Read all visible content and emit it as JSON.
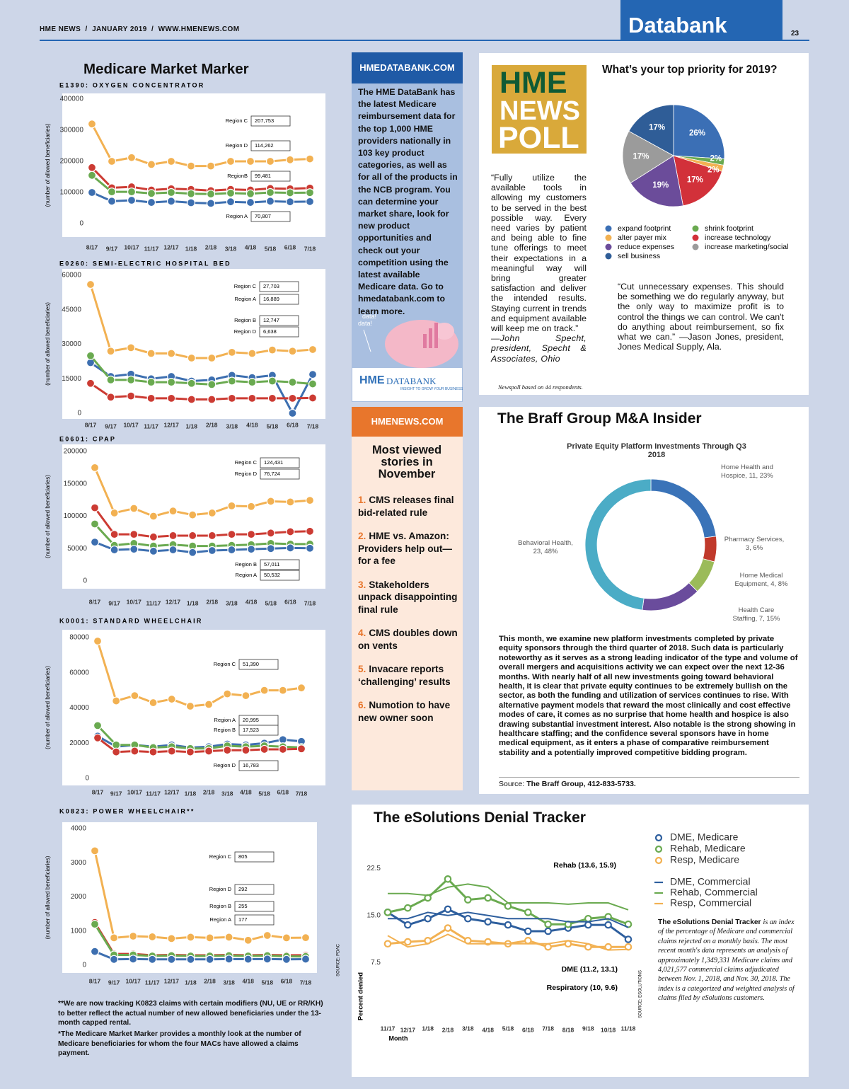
{
  "header": {
    "masthead": "HME NEWS  /  JANUARY 2019  /  WWW.HMENEWS.COM",
    "section": "Databank",
    "page": "23"
  },
  "market_marker": {
    "title": "Medicare Market Marker",
    "source": "SOURCE: PDAC",
    "footnotes": [
      "**We are now tracking K0823 claims with certain modifiers (NU, UE or RR/KH) to better reflect the actual number of new allowed beneficiaries under the 13-month capped rental.",
      "*The Medicare Market Marker provides a monthly look at the number of Medicare beneficiaries for whom the four MACs have allowed a claims payment."
    ]
  },
  "chart_data": [
    {
      "type": "line",
      "title": "E1390: OXYGEN CONCENTRATOR",
      "ylabel": "(number of allowed beneficiaries)",
      "marker": "filled",
      "categories": [
        "8/17",
        "9/17",
        "10/17",
        "11/17",
        "12/17",
        "1/18",
        "2/18",
        "3/18",
        "4/18",
        "5/18",
        "6/18",
        "7/18"
      ],
      "ylim": [
        0,
        400000
      ],
      "yticks": [
        0,
        100000,
        200000,
        300000,
        400000
      ],
      "series": [
        {
          "name": "Region C",
          "color": "#f2b152",
          "values": [
            320000,
            200000,
            212000,
            190000,
            200000,
            185000,
            185000,
            200000,
            200000,
            200000,
            205000,
            207753
          ],
          "end_label": "207,753"
        },
        {
          "name": "Region D",
          "color": "#cc3b33",
          "values": [
            180000,
            115000,
            118000,
            108000,
            112000,
            110000,
            106000,
            110000,
            108000,
            113000,
            112000,
            114262
          ],
          "end_label": "114,262"
        },
        {
          "name": "RegionB",
          "color": "#6aaa50",
          "values": [
            155000,
            102000,
            102000,
            97000,
            100000,
            96000,
            95000,
            98000,
            96000,
            100000,
            99000,
            99481
          ],
          "end_label": "99,481"
        },
        {
          "name": "Region A",
          "color": "#3d6fb0",
          "values": [
            100000,
            72000,
            75000,
            68000,
            72000,
            67000,
            65000,
            70000,
            68000,
            72000,
            70000,
            70807
          ],
          "end_label": "70,807"
        }
      ]
    },
    {
      "type": "line",
      "title": "E0260: SEMI-ELECTRIC HOSPITAL BED",
      "ylabel": "(number of allowed beneficiaries)",
      "marker": "filled",
      "categories": [
        "8/17",
        "9/17",
        "10/17",
        "11/17",
        "12/17",
        "1/18",
        "2/18",
        "3/18",
        "4/18",
        "5/18",
        "6/18",
        "7/18"
      ],
      "ylim": [
        0,
        60000
      ],
      "yticks": [
        0,
        15000,
        30000,
        45000,
        60000
      ],
      "series": [
        {
          "name": "Region C",
          "color": "#f2b152",
          "values": [
            56000,
            27000,
            28500,
            26000,
            26000,
            24000,
            24000,
            26500,
            26000,
            27500,
            27000,
            27703
          ],
          "end_label": "27,703"
        },
        {
          "name": "Region A",
          "color": "#3d6fb0",
          "values": [
            22000,
            16000,
            17000,
            15000,
            16000,
            14000,
            14500,
            16500,
            15500,
            16500,
            0,
            16889
          ],
          "end_label": "16,889"
        },
        {
          "name": "Region B",
          "color": "#6aaa50",
          "values": [
            25000,
            14500,
            14500,
            13500,
            13500,
            13000,
            12500,
            14000,
            13500,
            14000,
            13500,
            12747
          ],
          "end_label": "12,747"
        },
        {
          "name": "Region D",
          "color": "#cc3b33",
          "values": [
            13000,
            7000,
            7500,
            6500,
            6500,
            6000,
            6000,
            6500,
            6500,
            6500,
            6500,
            6638
          ],
          "end_label": "6,638"
        }
      ]
    },
    {
      "type": "line",
      "title": "E0601: CPAP",
      "ylabel": "(number of allowed beneficiaries)",
      "marker": "filled",
      "categories": [
        "8/17",
        "9/17",
        "10/17",
        "11/17",
        "12/17",
        "1/18",
        "2/18",
        "3/18",
        "4/18",
        "5/18",
        "6/18",
        "7/18"
      ],
      "ylim": [
        0,
        200000
      ],
      "yticks": [
        0,
        50000,
        100000,
        150000,
        200000
      ],
      "series": [
        {
          "name": "Region C",
          "color": "#f2b152",
          "values": [
            175000,
            105000,
            112000,
            100000,
            108000,
            102000,
            105000,
            116000,
            115000,
            123000,
            122000,
            124431
          ],
          "end_label": "124,431"
        },
        {
          "name": "Region D",
          "color": "#cc3b33",
          "values": [
            113000,
            72000,
            72000,
            68000,
            70000,
            70000,
            70000,
            72000,
            72000,
            74000,
            76000,
            76724
          ],
          "end_label": "76,724"
        },
        {
          "name": "Region B",
          "color": "#6aaa50",
          "values": [
            88000,
            55000,
            58000,
            54000,
            56000,
            54000,
            54000,
            55000,
            56000,
            58000,
            57000,
            57011
          ],
          "end_label": "57,011"
        },
        {
          "name": "Region A",
          "color": "#3d6fb0",
          "values": [
            60000,
            48000,
            49000,
            46000,
            48000,
            44000,
            47000,
            48000,
            49000,
            50000,
            51000,
            50532
          ],
          "end_label": "50,532"
        }
      ]
    },
    {
      "type": "line",
      "title": "K0001: STANDARD WHEELCHAIR",
      "ylabel": "(number of allowed beneficiaries)",
      "marker": "filled",
      "categories": [
        "8/17",
        "9/17",
        "10/17",
        "11/17",
        "12/17",
        "1/18",
        "2/18",
        "3/18",
        "4/18",
        "5/18",
        "6/18",
        "7/18"
      ],
      "ylim": [
        0,
        80000
      ],
      "yticks": [
        0,
        20000,
        40000,
        60000,
        80000
      ],
      "series": [
        {
          "name": "Region C",
          "color": "#f2b152",
          "values": [
            78000,
            44000,
            47000,
            43000,
            45000,
            41000,
            42000,
            48000,
            47000,
            50000,
            50000,
            51390
          ],
          "end_label": "51,390"
        },
        {
          "name": "Region A",
          "color": "#3d6fb0",
          "values": [
            24000,
            18000,
            19000,
            18000,
            19000,
            17500,
            18000,
            19500,
            19000,
            20000,
            22000,
            20995
          ],
          "end_label": "20,995"
        },
        {
          "name": "Region B",
          "color": "#6aaa50",
          "values": [
            30000,
            19000,
            19000,
            17500,
            18000,
            17000,
            17000,
            18500,
            18000,
            18500,
            18000,
            17523
          ],
          "end_label": "17,523"
        },
        {
          "name": "Region D",
          "color": "#cc3b33",
          "values": [
            23000,
            15000,
            15500,
            15000,
            15500,
            15000,
            15500,
            16000,
            16000,
            16500,
            16500,
            16783
          ],
          "end_label": "16,783"
        }
      ]
    },
    {
      "type": "line",
      "title": "K0823: POWER WHEELCHAIR**",
      "ylabel": "(number of allowed beneficiaries)",
      "marker": "filled",
      "categories": [
        "8/17",
        "9/17",
        "10/17",
        "11/17",
        "12/17",
        "1/18",
        "2/18",
        "3/18",
        "4/18",
        "5/18",
        "6/18",
        "7/18"
      ],
      "ylim": [
        0,
        4000
      ],
      "yticks": [
        0,
        1000,
        2000,
        3000,
        4000
      ],
      "series": [
        {
          "name": "Region C",
          "color": "#f2b152",
          "values": [
            3350,
            800,
            850,
            830,
            780,
            820,
            800,
            820,
            730,
            870,
            800,
            805
          ],
          "end_label": "805"
        },
        {
          "name": "Region D",
          "color": "#cc3b33",
          "values": [
            1250,
            330,
            330,
            290,
            300,
            290,
            290,
            300,
            290,
            300,
            290,
            292
          ],
          "end_label": "292"
        },
        {
          "name": "Region B",
          "color": "#6aaa50",
          "values": [
            1200,
            300,
            300,
            270,
            280,
            270,
            270,
            280,
            270,
            280,
            260,
            255
          ],
          "end_label": "255"
        },
        {
          "name": "Region A",
          "color": "#3d6fb0",
          "values": [
            400,
            170,
            180,
            170,
            170,
            170,
            170,
            180,
            175,
            180,
            170,
            177
          ],
          "end_label": "177"
        }
      ]
    },
    {
      "type": "pie",
      "title": "What’s your top priority for 2019?",
      "categories": [
        "expand footprint",
        "shrink footprint",
        "alter payer mix",
        "increase technology",
        "reduce expenses",
        "increase marketing/social",
        "sell business"
      ],
      "values": [
        26,
        2,
        2,
        17,
        19,
        17,
        17
      ],
      "value_labels": [
        "26%",
        "2%",
        "2%",
        "17%",
        "19%",
        "17%",
        "17%"
      ],
      "colors": [
        "#3b6fb5",
        "#6aaa50",
        "#f2b152",
        "#d2313a",
        "#6b4c9a",
        "#9b9b9b",
        "#2f5d97"
      ]
    },
    {
      "type": "donut",
      "title": "Private Equity Platform Investments Through Q3 2018",
      "values": [
        11,
        3,
        4,
        7,
        23
      ],
      "value_labels": [
        "Home Health and Hospice, 11, 23%",
        "Pharmacy Services, 3, 6%",
        "Home Medical Equipment, 4, 8%",
        "Health Care Staffing, 7, 15%",
        "Behavioral Health, 23, 48%"
      ],
      "colors": [
        "#3a73b8",
        "#c0392b",
        "#9bbb59",
        "#6a4c9c",
        "#4bacc6"
      ]
    },
    {
      "type": "line",
      "xlabel": "Month",
      "ylabel": "Percent denied",
      "categories": [
        "11/17",
        "12/17",
        "1/18",
        "2/18",
        "3/18",
        "4/18",
        "5/18",
        "6/18",
        "7/18",
        "8/18",
        "9/18",
        "10/18",
        "11/18"
      ],
      "ylim": [
        0,
        25
      ],
      "yticks": [
        7.5,
        {
          "value": 15,
          "label": "15.0"
        },
        22.5
      ],
      "series": [
        {
          "name": "DME, Medicare",
          "color": "#2e5f9e",
          "marker": "hollow",
          "values": [
            15.5,
            13.5,
            14.5,
            16,
            14.5,
            14,
            13.5,
            12.5,
            12.5,
            13,
            13.5,
            13.5,
            11.2
          ]
        },
        {
          "name": "Rehab, Medicare",
          "color": "#6aaa50",
          "marker": "hollow",
          "values": [
            15.5,
            16.2,
            17.8,
            20.8,
            17.5,
            17.8,
            16.5,
            15.5,
            13.6,
            13.6,
            14.5,
            14.8,
            13.6
          ]
        },
        {
          "name": "Resp, Medicare",
          "color": "#f2b152",
          "marker": "hollow",
          "values": [
            10.5,
            10.8,
            11,
            13,
            11,
            10.8,
            10.5,
            11,
            10,
            10.5,
            10,
            10,
            10
          ]
        },
        {
          "name": "DME, Commercial",
          "color": "#2e5f9e",
          "marker": "none",
          "values": [
            14.5,
            14.5,
            15.5,
            15,
            15.5,
            15,
            14.5,
            14.5,
            14.5,
            14,
            14,
            14.5,
            13.1
          ]
        },
        {
          "name": "Rehab, Commercial",
          "color": "#6aaa50",
          "marker": "none",
          "values": [
            18.5,
            18.5,
            18.2,
            19.5,
            20,
            19.5,
            17,
            17,
            17,
            16.8,
            17,
            17,
            15.9
          ]
        },
        {
          "name": "Resp, Commercial",
          "color": "#f2b152",
          "marker": "none",
          "values": [
            11.8,
            10,
            10.5,
            12,
            10.5,
            10.5,
            10.5,
            10.5,
            10.5,
            11,
            10.5,
            9.5,
            9.6
          ]
        }
      ],
      "annotations": [
        "Rehab (13.6, 15.9)",
        "DME (11.2, 13.1)",
        "Respiratory (10, 9.6)"
      ],
      "source": "SOURCE: ESOLUTIONS"
    }
  ],
  "databank": {
    "header": "HMEDATABANK.COM",
    "body": "The HME DataBank has the latest Medicare reimbursement data for the top 1,000 HME providers nationally in 103 key product categories, as well as for all of the products in the NCB program. You can determine your market share, look for new product opportunities and check out your competition using the latest available Medicare data. Go to hmedatabank.com to learn more.",
    "piggy": [
      "data!",
      "data!"
    ],
    "logo": [
      "HME",
      "DATABANK"
    ],
    "tagline": "INSIGHT TO GROW YOUR BUSINESS"
  },
  "most_viewed": {
    "header": "HMENEWS.COM",
    "title": "Most viewed stories in November",
    "items": [
      {
        "number": "1.",
        "text": "CMS releases final bid-related rule"
      },
      {
        "number": "2.",
        "text": "HME vs. Amazon: Providers help out—for a fee"
      },
      {
        "number": "3.",
        "text": "Stakeholders unpack disappointing final rule"
      },
      {
        "number": "4.",
        "text": "CMS doubles down on vents"
      },
      {
        "number": "5.",
        "text": "Invacare reports ‘challenging’ results"
      },
      {
        "number": "6.",
        "text": "Numotion to have new owner soon"
      }
    ]
  },
  "poll": {
    "logo": [
      "HME",
      "NEWS",
      "POLL"
    ],
    "quote1": "“Fully utilize the available tools in allowing my customers to be served in the best possible way. Every need varies by patient and being able to fine tune offerings to meet their expectations in a meaningful way will bring greater satisfaction and deliver the intended results. Staying current in trends and equipment available will keep me on track.”",
    "attribution1": "—John Specht, president, Specht & Associates, Ohio",
    "quote2": "“Cut unnecessary expenses. This should be something we do regularly anyway, but the only way to maximize profit is to control the things we can control. We can't do anything about reimbursement, so fix what we can.” —Jason Jones, president, Jones Medical Supply, Ala.",
    "note": "Newspoll based on 44 respondents."
  },
  "braff": {
    "title": "The Braff Group M&A Insider",
    "body": "This month, we examine new platform investments completed by private equity sponsors through the third quarter of 2018. Such data is particularly noteworthy as it serves as a strong leading indicator of the type and volume of overall mergers and acquisitions activity we can expect over the next 12-36 months. With nearly half of all new investments going toward behavioral health, it is clear that private equity continues to be extremely bullish on the sector, as both the funding and utilization of services continues to rise. With alternative payment models that reward the most clinically and cost effective modes of care, it comes as no surprise that home health and hospice is also drawing substantial investment interest. Also notable is the strong showing in healthcare staffing; and the confidence several sponsors have in home medical equipment, as it enters a phase of comparative reimbursement stability and a potentially improved competitive bidding program.",
    "source_label": "Source:",
    "source": "The Braff Group, 412-833-5733."
  },
  "esolutions": {
    "title": "The eSolutions Denial Tracker",
    "description_lead": "The eSolutions Denial Tracker",
    "description": "is an index of the percentage of Medicare and commercial claims rejected on a monthly basis. The most recent month's data represents an analysis of approximately 1,349,331 Medicare claims and 4,021,577 commercial claims adjudicated between Nov. 1, 2018, and Nov. 30, 2018. The index is a categorized and weighted analysis of claims filed by eSolutions customers."
  }
}
